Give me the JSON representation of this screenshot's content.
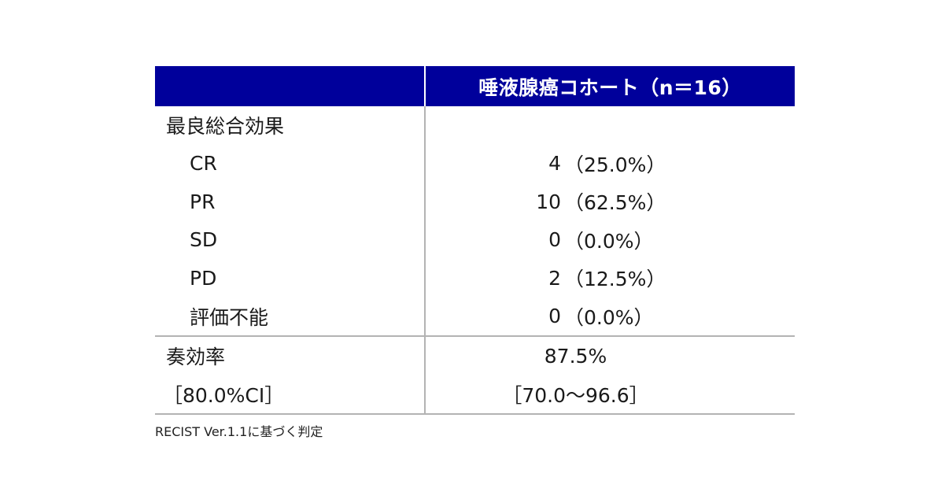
{
  "header": {
    "cohort_title": "唾液腺癌コホート（n＝16）"
  },
  "response_section": {
    "label": "最良総合効果",
    "rows": [
      {
        "label": "CR",
        "count": "4",
        "pct": "（25.0%）"
      },
      {
        "label": "PR",
        "count": "10",
        "pct": "（62.5%）"
      },
      {
        "label": "SD",
        "count": "0",
        "pct": "（0.0%）"
      },
      {
        "label": "PD",
        "count": "2",
        "pct": "（12.5%）"
      },
      {
        "label": "評価不能",
        "count": "0",
        "pct": "（0.0%）"
      }
    ]
  },
  "rate_section": {
    "rate_label": "奏効率",
    "rate_value": "87.5%",
    "ci_label": "［80.0%CI］",
    "ci_value": "［70.0～96.6］"
  },
  "footnote": "RECIST Ver.1.1に基づく判定"
}
